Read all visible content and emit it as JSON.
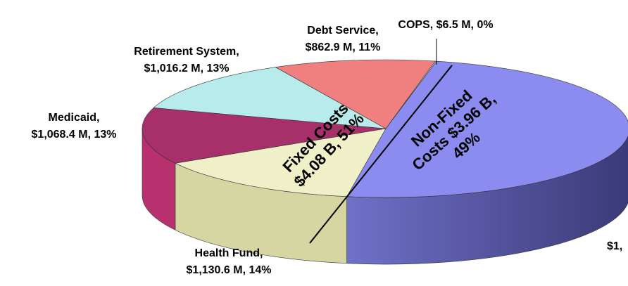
{
  "chart_data": {
    "type": "pie",
    "categories": [
      null,
      "Health Fund,",
      "Medicaid,",
      "Retirement System,",
      "Debt Service,",
      "COPS,"
    ],
    "values": [
      3960,
      1130.6,
      1068.4,
      1016.2,
      862.9,
      6.5
    ],
    "value_labels": [
      null,
      "$1,130.6 M, 14%",
      "$1,068.4 M, 13%",
      "$1,016.2 M, 13%",
      "$862.9 M, 11%",
      "$6.5 M, 0%"
    ],
    "colors": [
      "#8c8cf0",
      "#f0f0c8",
      "#a8306a",
      "#b8ecec",
      "#f08080",
      "#e8e8e8"
    ],
    "side_colors": [
      "#5656a8",
      "#d6d6a2",
      "#b8306e",
      "#9cd0d0",
      "#d06060",
      "#c8c8c8"
    ],
    "annotations": [
      {
        "lines": [
          "Fixed Costs",
          "$4.08 B, 51%"
        ]
      },
      {
        "lines": [
          "Non-Fixed",
          "Costs $3.96 B,",
          "49%"
        ]
      },
      {
        "lines": [
          "$1,"
        ]
      }
    ]
  }
}
